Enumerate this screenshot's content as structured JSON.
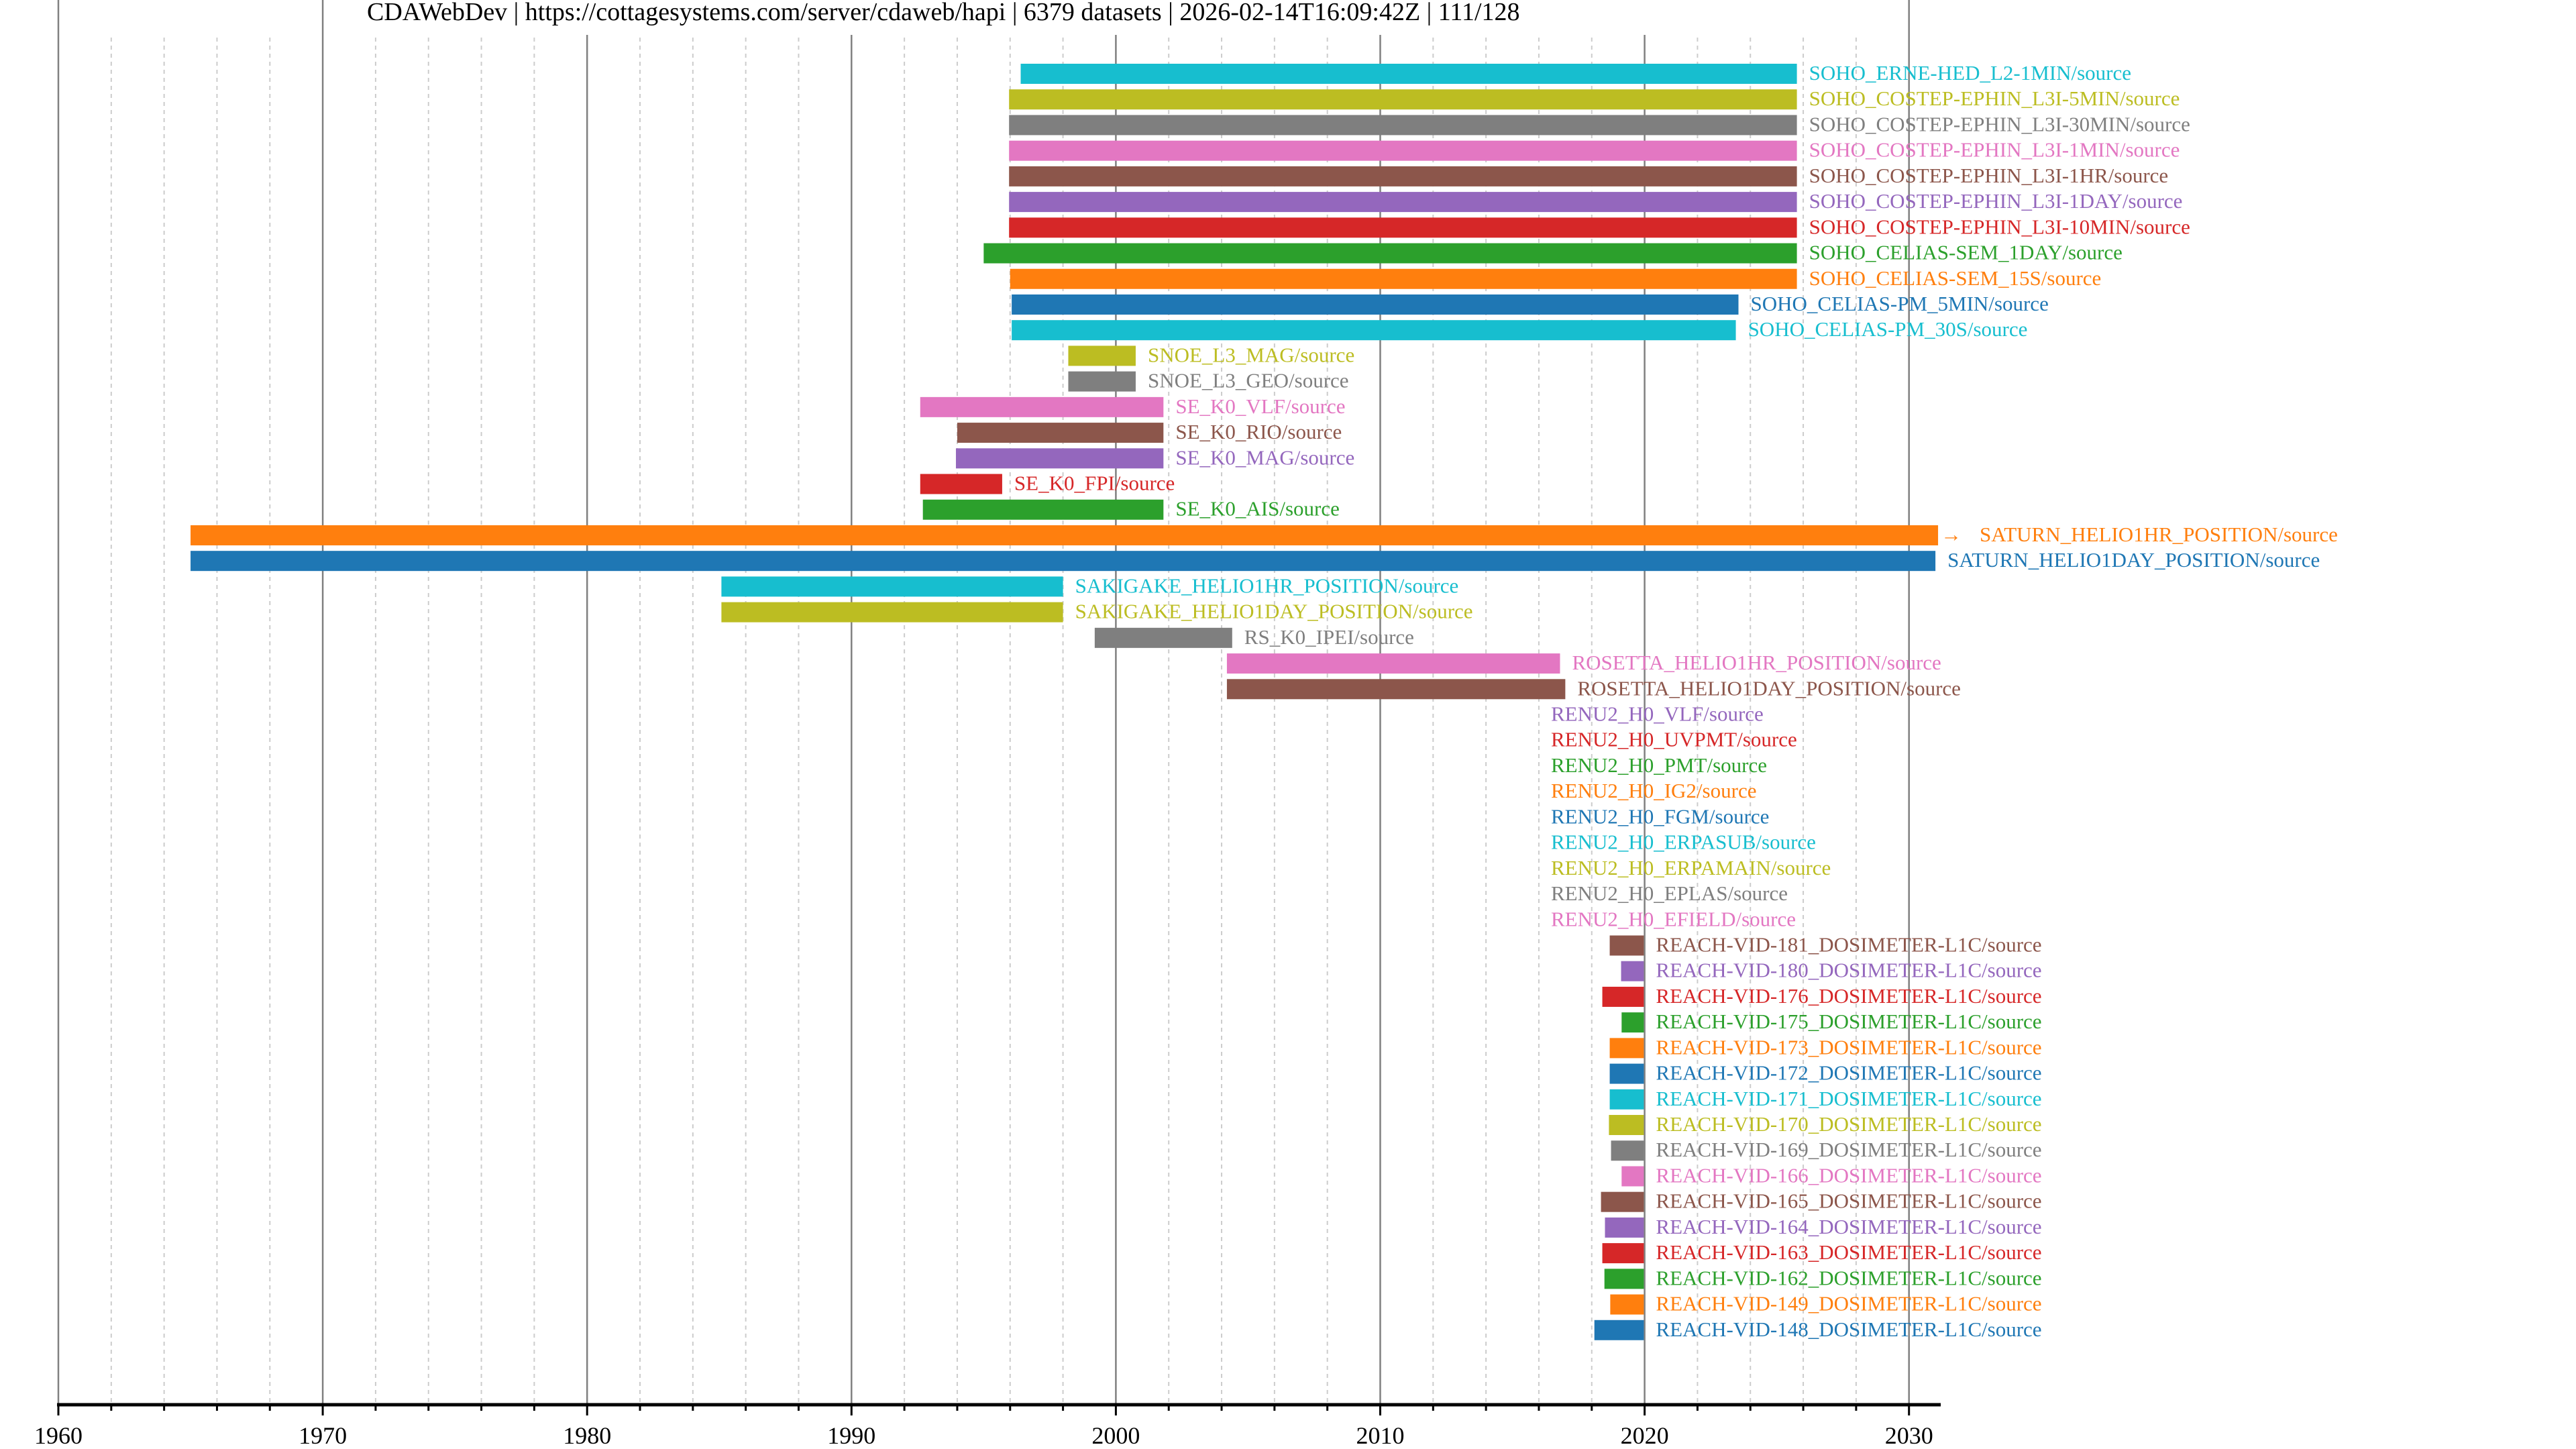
{
  "title": "CDAWebDev | https://cottagesystems.com/server/cdaweb/hapi | 6379 datasets | 2026-02-14T16:09:42Z | 111/128",
  "chart_data": {
    "type": "timeline",
    "title": "CDAWebDev | https://cottagesystems.com/server/cdaweb/hapi | 6379 datasets | 2026-02-14T16:09:42Z | 111/128",
    "xlabel": "",
    "ylabel": "",
    "xlim": [
      1960,
      2031.2
    ],
    "x_ticks": [
      "1960",
      "1970",
      "1980",
      "1990",
      "2000",
      "2010",
      "2020",
      "2030"
    ],
    "x_major_step": 10,
    "x_minor_step": 2,
    "grid": {
      "major": "solid-gray",
      "minor": "dotted-lightgray"
    },
    "palette": [
      "#1f77b4",
      "#ff7f0e",
      "#2ca02c",
      "#d62728",
      "#9467bd",
      "#8c564b",
      "#e377c2",
      "#7f7f7f",
      "#bcbd22",
      "#17becf"
    ],
    "series": [
      {
        "label": "SOHO_ERNE-HED_L2-1MIN/source",
        "start": 1996.4,
        "end": 2025.76,
        "color": "#17becf"
      },
      {
        "label": "SOHO_COSTEP-EPHIN_L3I-5MIN/source",
        "start": 1995.96,
        "end": 2025.76,
        "color": "#bcbd22"
      },
      {
        "label": "SOHO_COSTEP-EPHIN_L3I-30MIN/source",
        "start": 1995.96,
        "end": 2025.76,
        "color": "#7f7f7f"
      },
      {
        "label": "SOHO_COSTEP-EPHIN_L3I-1MIN/source",
        "start": 1995.96,
        "end": 2025.76,
        "color": "#e377c2"
      },
      {
        "label": "SOHO_COSTEP-EPHIN_L3I-1HR/source",
        "start": 1995.96,
        "end": 2025.76,
        "color": "#8c564b"
      },
      {
        "label": "SOHO_COSTEP-EPHIN_L3I-1DAY/source",
        "start": 1995.96,
        "end": 2025.76,
        "color": "#9467bd"
      },
      {
        "label": "SOHO_COSTEP-EPHIN_L3I-10MIN/source",
        "start": 1995.96,
        "end": 2025.76,
        "color": "#d62728"
      },
      {
        "label": "SOHO_CELIAS-SEM_1DAY/source",
        "start": 1995.0,
        "end": 2025.76,
        "color": "#2ca02c"
      },
      {
        "label": "SOHO_CELIAS-SEM_15S/source",
        "start": 1996.0,
        "end": 2025.76,
        "color": "#ff7f0e"
      },
      {
        "label": "SOHO_CELIAS-PM_5MIN/source",
        "start": 1996.06,
        "end": 2023.55,
        "color": "#1f77b4"
      },
      {
        "label": "SOHO_CELIAS-PM_30S/source",
        "start": 1996.06,
        "end": 2023.45,
        "color": "#17becf"
      },
      {
        "label": "SNOE_L3_MAG/source",
        "start": 1998.2,
        "end": 2000.75,
        "color": "#bcbd22"
      },
      {
        "label": "SNOE_L3_GEO/source",
        "start": 1998.2,
        "end": 2000.75,
        "color": "#7f7f7f"
      },
      {
        "label": "SE_K0_VLF/source",
        "start": 1992.6,
        "end": 2001.8,
        "color": "#e377c2"
      },
      {
        "label": "SE_K0_RIO/source",
        "start": 1994.0,
        "end": 2001.8,
        "color": "#8c564b"
      },
      {
        "label": "SE_K0_MAG/source",
        "start": 1993.95,
        "end": 2001.8,
        "color": "#9467bd"
      },
      {
        "label": "SE_K0_FPI/source",
        "start": 1992.6,
        "end": 1995.7,
        "color": "#d62728"
      },
      {
        "label": "SE_K0_AIS/source",
        "start": 1992.7,
        "end": 2001.8,
        "color": "#2ca02c"
      },
      {
        "label": "SATURN_HELIO1HR_POSITION/source",
        "start": 1965.0,
        "end": 2031.1,
        "color": "#ff7f0e",
        "continues": true
      },
      {
        "label": "SATURN_HELIO1DAY_POSITION/source",
        "start": 1965.0,
        "end": 2031.0,
        "color": "#1f77b4"
      },
      {
        "label": "SAKIGAKE_HELIO1HR_POSITION/source",
        "start": 1985.08,
        "end": 1998.0,
        "color": "#17becf"
      },
      {
        "label": "SAKIGAKE_HELIO1DAY_POSITION/source",
        "start": 1985.08,
        "end": 1998.0,
        "color": "#bcbd22"
      },
      {
        "label": "RS_K0_IPEI/source",
        "start": 1999.2,
        "end": 2004.4,
        "color": "#7f7f7f"
      },
      {
        "label": "ROSETTA_HELIO1HR_POSITION/source",
        "start": 2004.2,
        "end": 2016.8,
        "color": "#e377c2"
      },
      {
        "label": "ROSETTA_HELIO1DAY_POSITION/source",
        "start": 2004.2,
        "end": 2017.0,
        "color": "#8c564b"
      },
      {
        "label": "RENU2_H0_VLF/source",
        "start": 2016.0,
        "end": 2016.0,
        "color": "#9467bd"
      },
      {
        "label": "RENU2_H0_UVPMT/source",
        "start": 2016.0,
        "end": 2016.0,
        "color": "#d62728"
      },
      {
        "label": "RENU2_H0_PMT/source",
        "start": 2016.0,
        "end": 2016.0,
        "color": "#2ca02c"
      },
      {
        "label": "RENU2_H0_IG2/source",
        "start": 2016.0,
        "end": 2016.0,
        "color": "#ff7f0e"
      },
      {
        "label": "RENU2_H0_FGM/source",
        "start": 2016.0,
        "end": 2016.0,
        "color": "#1f77b4"
      },
      {
        "label": "RENU2_H0_ERPASUB/source",
        "start": 2016.0,
        "end": 2016.0,
        "color": "#17becf"
      },
      {
        "label": "RENU2_H0_ERPAMAIN/source",
        "start": 2016.0,
        "end": 2016.0,
        "color": "#bcbd22"
      },
      {
        "label": "RENU2_H0_EPLAS/source",
        "start": 2016.0,
        "end": 2016.0,
        "color": "#7f7f7f"
      },
      {
        "label": "RENU2_H0_EFIELD/source",
        "start": 2016.0,
        "end": 2016.0,
        "color": "#e377c2"
      },
      {
        "label": "REACH-VID-181_DOSIMETER-L1C/source",
        "start": 2018.68,
        "end": 2019.97,
        "color": "#8c564b"
      },
      {
        "label": "REACH-VID-180_DOSIMETER-L1C/source",
        "start": 2019.11,
        "end": 2019.97,
        "color": "#9467bd"
      },
      {
        "label": "REACH-VID-176_DOSIMETER-L1C/source",
        "start": 2018.4,
        "end": 2019.97,
        "color": "#d62728"
      },
      {
        "label": "REACH-VID-175_DOSIMETER-L1C/source",
        "start": 2019.13,
        "end": 2019.97,
        "color": "#2ca02c"
      },
      {
        "label": "REACH-VID-173_DOSIMETER-L1C/source",
        "start": 2018.68,
        "end": 2019.97,
        "color": "#ff7f0e"
      },
      {
        "label": "REACH-VID-172_DOSIMETER-L1C/source",
        "start": 2018.68,
        "end": 2019.97,
        "color": "#1f77b4"
      },
      {
        "label": "REACH-VID-171_DOSIMETER-L1C/source",
        "start": 2018.68,
        "end": 2019.97,
        "color": "#17becf"
      },
      {
        "label": "REACH-VID-170_DOSIMETER-L1C/source",
        "start": 2018.65,
        "end": 2019.97,
        "color": "#bcbd22"
      },
      {
        "label": "REACH-VID-169_DOSIMETER-L1C/source",
        "start": 2018.73,
        "end": 2019.97,
        "color": "#7f7f7f"
      },
      {
        "label": "REACH-VID-166_DOSIMETER-L1C/source",
        "start": 2019.13,
        "end": 2019.97,
        "color": "#e377c2"
      },
      {
        "label": "REACH-VID-165_DOSIMETER-L1C/source",
        "start": 2018.35,
        "end": 2019.97,
        "color": "#8c564b"
      },
      {
        "label": "REACH-VID-164_DOSIMETER-L1C/source",
        "start": 2018.5,
        "end": 2019.97,
        "color": "#9467bd"
      },
      {
        "label": "REACH-VID-163_DOSIMETER-L1C/source",
        "start": 2018.4,
        "end": 2019.97,
        "color": "#d62728"
      },
      {
        "label": "REACH-VID-162_DOSIMETER-L1C/source",
        "start": 2018.48,
        "end": 2019.97,
        "color": "#2ca02c"
      },
      {
        "label": "REACH-VID-149_DOSIMETER-L1C/source",
        "start": 2018.7,
        "end": 2019.97,
        "color": "#ff7f0e"
      },
      {
        "label": "REACH-VID-148_DOSIMETER-L1C/source",
        "start": 2018.1,
        "end": 2019.97,
        "color": "#1f77b4"
      }
    ],
    "continuation_marker": "→"
  }
}
